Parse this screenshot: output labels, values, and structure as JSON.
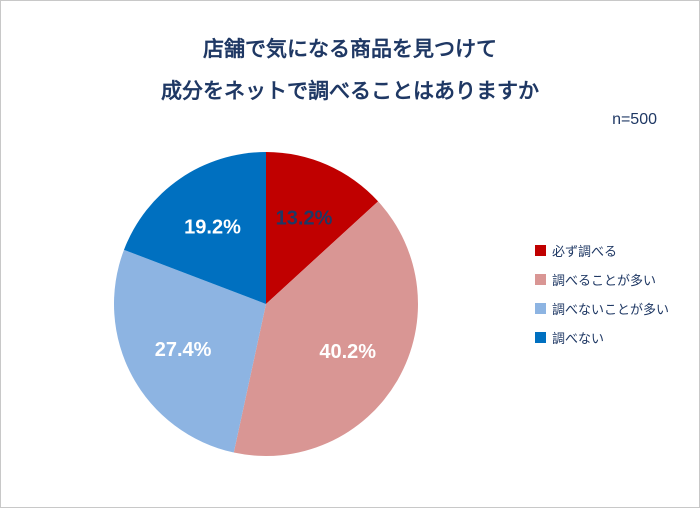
{
  "header": {
    "title_line1": "店舗で気になる商品を見つけて",
    "title_line2": "成分をネットで調べることはありますか",
    "sample_size": "n=500",
    "title_color": "#1F3864"
  },
  "chart_data": {
    "type": "pie",
    "title": "店舗で気になる商品を見つけて成分をネットで調べることはありますか",
    "sample_size": "n=500",
    "start_angle_deg": 0,
    "direction": "clockwise",
    "legend_position": "right",
    "slices": [
      {
        "label": "必ず調べる",
        "value": 13.2,
        "display": "13.2%",
        "color": "#C00000",
        "label_color": "#1F3864"
      },
      {
        "label": "調べることが多い",
        "value": 40.2,
        "display": "40.2%",
        "color": "#D99694",
        "label_color": "#FFFFFF"
      },
      {
        "label": "調べないことが多い",
        "value": 27.4,
        "display": "27.4%",
        "color": "#8DB4E2",
        "label_color": "#FFFFFF"
      },
      {
        "label": "調べない",
        "value": 19.2,
        "display": "19.2%",
        "color": "#0070C0",
        "label_color": "#FFFFFF"
      }
    ]
  }
}
